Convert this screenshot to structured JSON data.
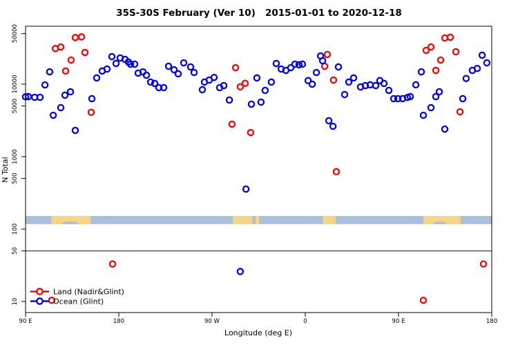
{
  "title": "35S-30S February (Ver 10)   2015-01-01 to 2020-12-18",
  "chart_data": {
    "type": "scatter",
    "title": "35S-30S February (Ver 10)   2015-01-01 to 2020-12-18",
    "xlabel": "Longitude (deg E)",
    "ylabel": "N Total",
    "x_axis": {
      "unit": "deg E (wrapping eastward from 90E through 180, 90W, 0, 90E to 180)",
      "start_deg": 90,
      "end_deg": 540,
      "ticks": [
        {
          "deg": 90,
          "label": "90 E"
        },
        {
          "deg": 180,
          "label": "180"
        },
        {
          "deg": 270,
          "label": "90 W"
        },
        {
          "deg": 360,
          "label": "0"
        },
        {
          "deg": 450,
          "label": "90 E"
        },
        {
          "deg": 540,
          "label": "180"
        }
      ]
    },
    "y_axis": {
      "scale": "log10",
      "ticks": [
        10,
        50,
        100,
        500,
        1000,
        5000,
        10000,
        50000
      ],
      "range": [
        7,
        70000
      ]
    },
    "threshold_line_value": 50,
    "land_ocean_strip": {
      "description": "map strip of 35S-30S latitude band",
      "n_range": [
        117,
        152
      ],
      "ocean_color": "#a9c0dc",
      "land_color": "#f8d584",
      "land_patches_deg": [
        [
          115,
          153
        ],
        [
          290,
          309
        ],
        [
          312,
          315.5
        ],
        [
          377,
          389.5
        ],
        [
          474,
          510
        ]
      ],
      "coast_notches_deg": [
        [
          124,
          142
        ],
        [
          483,
          497
        ]
      ]
    },
    "series": [
      {
        "name": "Land (Nadir&Glint)",
        "color": "#ff0000",
        "points": [
          [
            138,
            44000
          ],
          [
            144,
            45000
          ],
          [
            118.7,
            31000
          ],
          [
            124,
            32600
          ],
          [
            147.3,
            27400
          ],
          [
            134,
            21500
          ],
          [
            128.7,
            15200
          ],
          [
            153.3,
            4100
          ],
          [
            292.7,
            16900
          ],
          [
            297.3,
            9200
          ],
          [
            302,
            10300
          ],
          [
            289.3,
            2800
          ],
          [
            307.3,
            2150
          ],
          [
            381.3,
            25700
          ],
          [
            378.7,
            17700
          ],
          [
            387.3,
            11400
          ],
          [
            390,
            620
          ],
          [
            476.7,
            29300
          ],
          [
            481.3,
            32600
          ],
          [
            486,
            15500
          ],
          [
            490.7,
            21500
          ],
          [
            494.7,
            43500
          ],
          [
            500,
            44400
          ],
          [
            505.3,
            28000
          ],
          [
            509.3,
            4160
          ],
          [
            174,
            33
          ],
          [
            532,
            33
          ],
          [
            474,
            10.4
          ],
          [
            115.3,
            10.4
          ]
        ]
      },
      {
        "name": "Ocean (Glint)",
        "color": "#0000ff",
        "points": [
          [
            90,
            6700
          ],
          [
            92.7,
            6740
          ],
          [
            98.7,
            6590
          ],
          [
            104,
            6590
          ],
          [
            113.3,
            14800
          ],
          [
            108.7,
            9770
          ],
          [
            128,
            7050
          ],
          [
            133.3,
            7850
          ],
          [
            124,
            4740
          ],
          [
            116.7,
            3720
          ],
          [
            138,
            2300
          ],
          [
            154,
            6310
          ],
          [
            158.7,
            12200
          ],
          [
            164,
            15200
          ],
          [
            168.7,
            16200
          ],
          [
            173.3,
            24000
          ],
          [
            177.3,
            19300
          ],
          [
            181.3,
            23000
          ],
          [
            186,
            22000
          ],
          [
            189.3,
            20200
          ],
          [
            191.3,
            18900
          ],
          [
            195.3,
            18900
          ],
          [
            198.7,
            14200
          ],
          [
            203.3,
            14800
          ],
          [
            206.7,
            13300
          ],
          [
            210.7,
            10700
          ],
          [
            214.7,
            10250
          ],
          [
            218.7,
            8960
          ],
          [
            223.3,
            8960
          ],
          [
            228,
            17700
          ],
          [
            233.3,
            15800
          ],
          [
            237.3,
            13900
          ],
          [
            242.7,
            19700
          ],
          [
            249.3,
            17300
          ],
          [
            252.7,
            14500
          ],
          [
            260.7,
            8390
          ],
          [
            262.7,
            10700
          ],
          [
            267.3,
            11400
          ],
          [
            272,
            12400
          ],
          [
            277.3,
            8960
          ],
          [
            281.3,
            9570
          ],
          [
            286.7,
            6040
          ],
          [
            308,
            5300
          ],
          [
            317.3,
            5650
          ],
          [
            313.3,
            12200
          ],
          [
            321.3,
            8200
          ],
          [
            327.3,
            10700
          ],
          [
            332,
            19300
          ],
          [
            336.7,
            16200
          ],
          [
            341.3,
            15500
          ],
          [
            346,
            16900
          ],
          [
            350,
            18900
          ],
          [
            354,
            18500
          ],
          [
            357.3,
            18900
          ],
          [
            362.7,
            11200
          ],
          [
            366.7,
            10000
          ],
          [
            370.7,
            14500
          ],
          [
            374.7,
            24500
          ],
          [
            376.7,
            21100
          ],
          [
            382.7,
            3130
          ],
          [
            386.7,
            2620
          ],
          [
            302.7,
            357
          ],
          [
            297.3,
            26
          ],
          [
            392,
            17300
          ],
          [
            398,
            7200
          ],
          [
            402,
            10700
          ],
          [
            406.7,
            12200
          ],
          [
            413.3,
            9160
          ],
          [
            418,
            9570
          ],
          [
            422.7,
            9800
          ],
          [
            428,
            9570
          ],
          [
            432,
            11200
          ],
          [
            436,
            10250
          ],
          [
            440.7,
            8200
          ],
          [
            445.3,
            6310
          ],
          [
            449.3,
            6310
          ],
          [
            454,
            6310
          ],
          [
            458.7,
            6560
          ],
          [
            461.3,
            6740
          ],
          [
            466.7,
            9800
          ],
          [
            472,
            14800
          ],
          [
            486,
            6740
          ],
          [
            489.3,
            7850
          ],
          [
            481.3,
            4740
          ],
          [
            474,
            3720
          ],
          [
            512,
            6310
          ],
          [
            515.3,
            12000
          ],
          [
            521.3,
            15500
          ],
          [
            526,
            16500
          ],
          [
            530.7,
            25100
          ],
          [
            535.3,
            19700
          ],
          [
            494.7,
            2400
          ]
        ]
      }
    ],
    "legend": {
      "position": "bottom-left"
    }
  }
}
